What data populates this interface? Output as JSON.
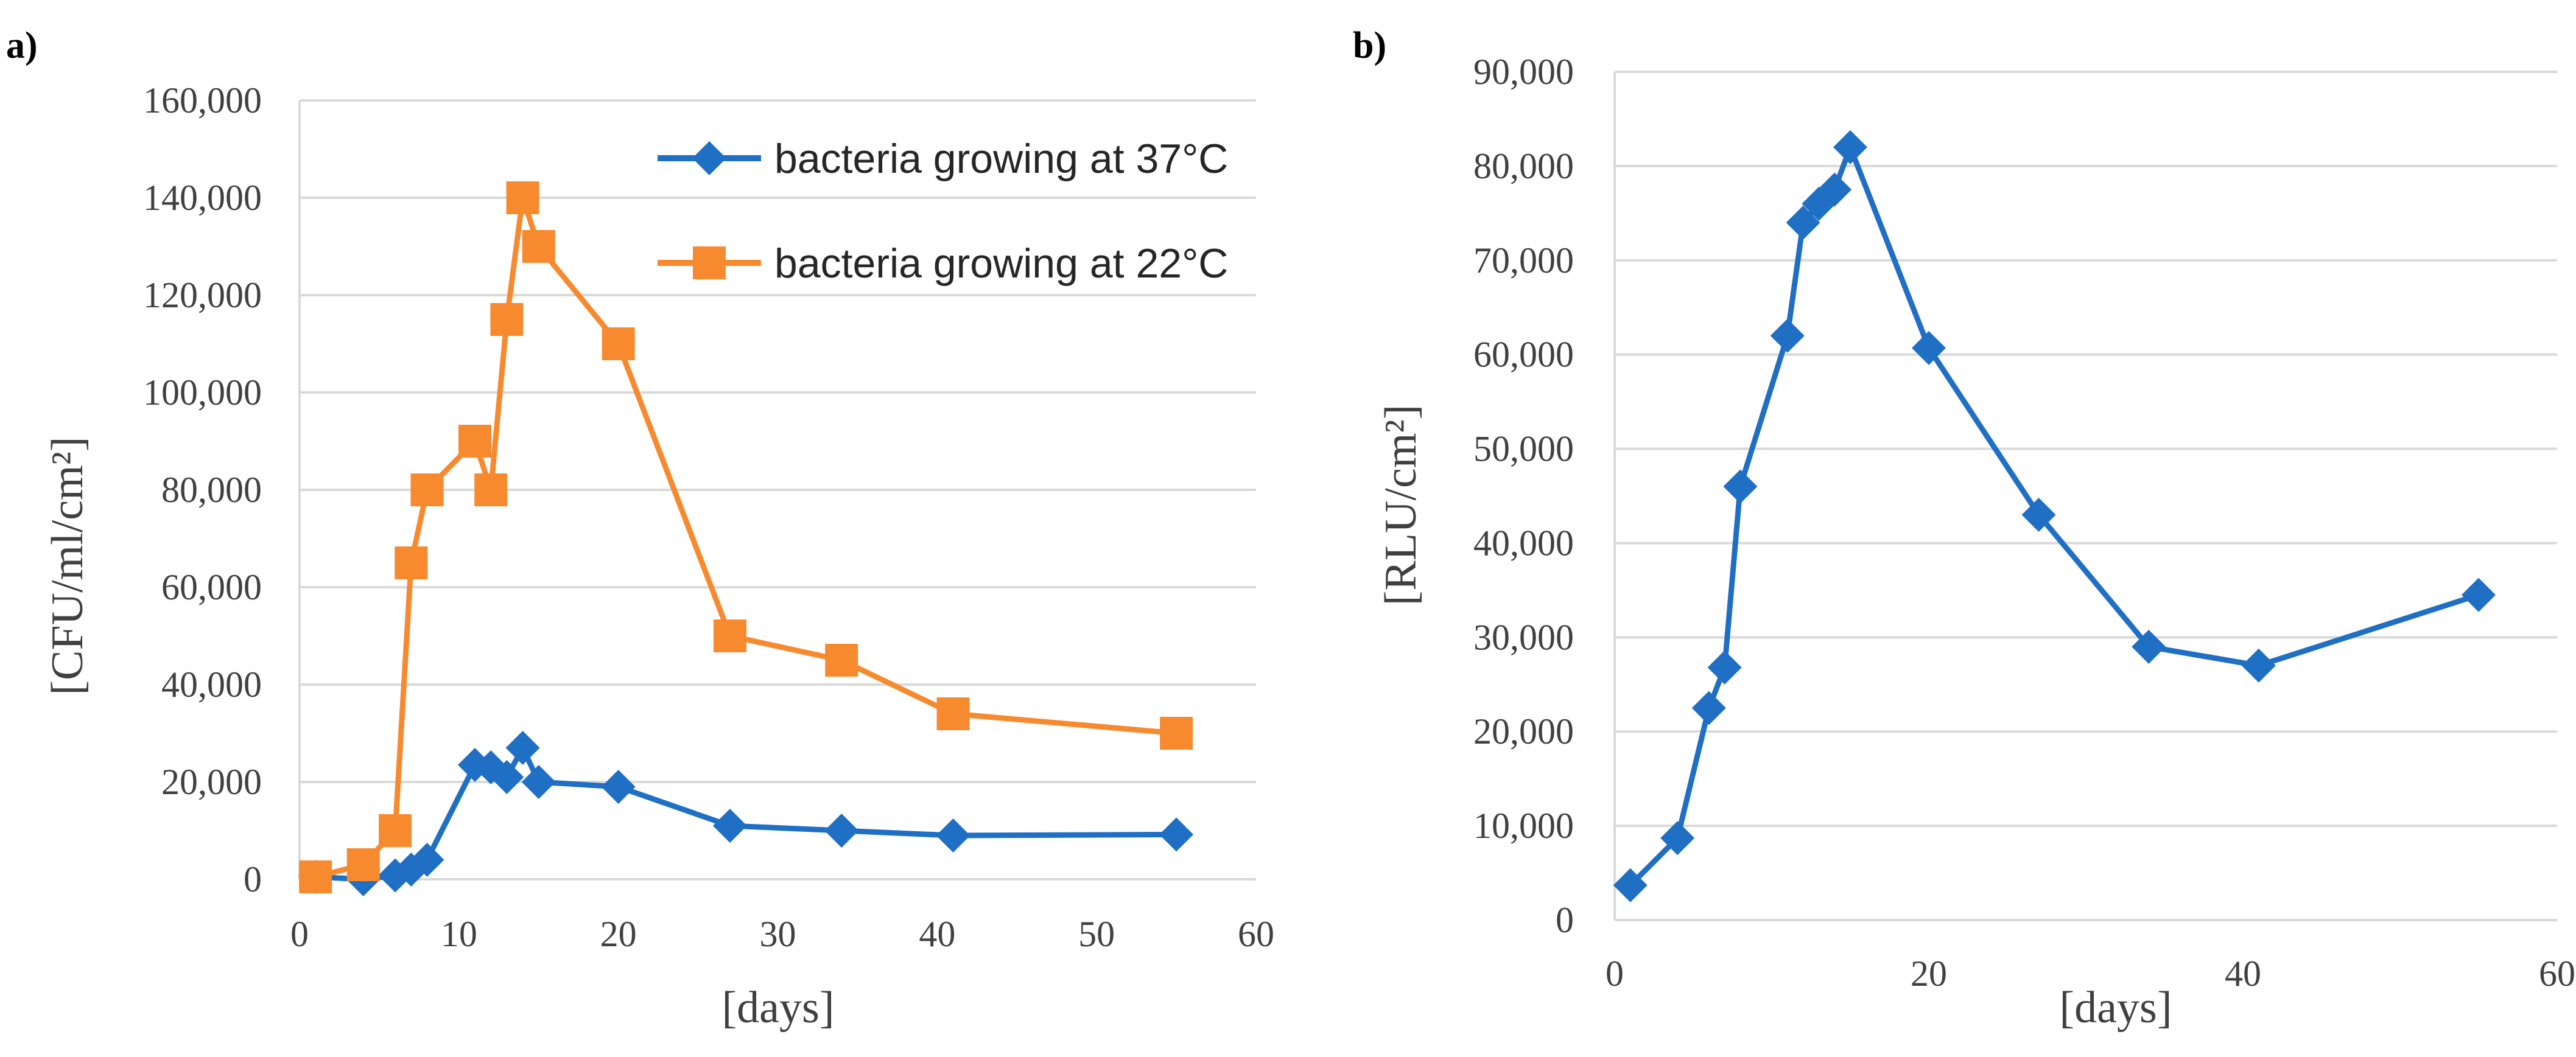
{
  "chart_data": [
    {
      "type": "line",
      "panel_label": "a)",
      "title": "",
      "xlabel": "[days]",
      "ylabel": "[CFU/ml/cm²]",
      "xlim": [
        0,
        60
      ],
      "ylim": [
        0,
        160000
      ],
      "xticks": [
        "0",
        "10",
        "20",
        "30",
        "40",
        "50",
        "60"
      ],
      "yticks": [
        "0",
        "20,000",
        "40,000",
        "60,000",
        "80,000",
        "100,000",
        "120,000",
        "140,000",
        "160,000"
      ],
      "grid": true,
      "legend_position": "top-right",
      "series": [
        {
          "name": "bacteria growing at 37°C",
          "color": "#1f6fc5",
          "marker": "diamond",
          "x": [
            1,
            4,
            6,
            7,
            8,
            11,
            12,
            13,
            14,
            15,
            20,
            27,
            34,
            41,
            55
          ],
          "y": [
            500,
            0,
            800,
            2000,
            4000,
            23500,
            23000,
            21000,
            27000,
            20000,
            19000,
            11000,
            10000,
            9000,
            9200
          ]
        },
        {
          "name": "bacteria growing at 22°C",
          "color": "#f78a2f",
          "marker": "square",
          "x": [
            1,
            4,
            6,
            7,
            8,
            11,
            12,
            13,
            14,
            15,
            20,
            27,
            34,
            41,
            55
          ],
          "y": [
            500,
            3000,
            10000,
            65000,
            80000,
            90000,
            80000,
            115000,
            140000,
            130000,
            110000,
            50000,
            45000,
            34000,
            30000
          ]
        }
      ]
    },
    {
      "type": "line",
      "panel_label": "b)",
      "title": "",
      "xlabel": "[days]",
      "ylabel": "[RLU/cm²]",
      "xlim": [
        0,
        60
      ],
      "ylim": [
        0,
        90000
      ],
      "xticks": [
        "0",
        "20",
        "40",
        "60"
      ],
      "yticks": [
        "0",
        "10,000",
        "20,000",
        "30,000",
        "40,000",
        "50,000",
        "60,000",
        "70,000",
        "80,000",
        "90,000"
      ],
      "grid": true,
      "series": [
        {
          "name": "RLU",
          "color": "#1f6fc5",
          "marker": "diamond",
          "x": [
            1,
            4,
            6,
            7,
            8,
            11,
            12,
            13,
            14,
            15,
            20,
            27,
            34,
            41,
            55
          ],
          "y": [
            3700,
            8700,
            22500,
            26800,
            46000,
            62000,
            74000,
            76000,
            77500,
            82000,
            60700,
            43000,
            29000,
            27000,
            34500
          ]
        }
      ]
    }
  ]
}
